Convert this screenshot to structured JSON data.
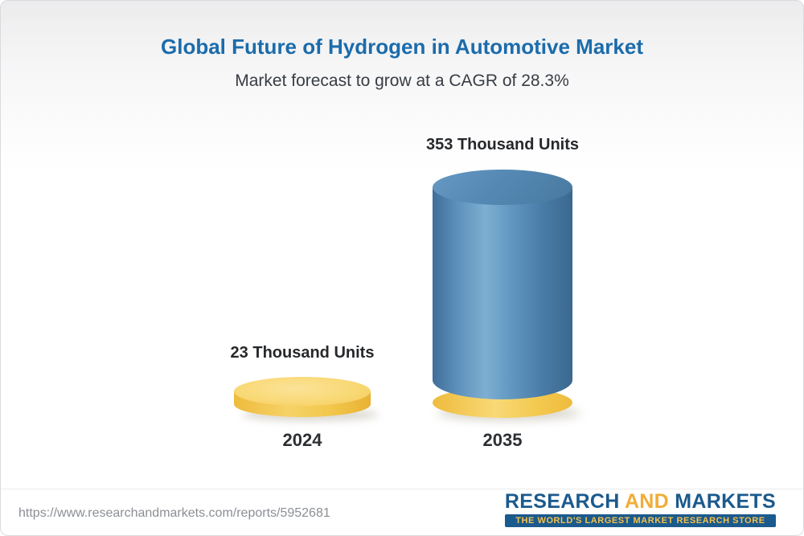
{
  "header": {
    "title": "Global Future of Hydrogen in Automotive Market",
    "subtitle": "Market forecast to grow at a CAGR of 28.3%"
  },
  "chart_data": {
    "type": "bar",
    "categories": [
      "2024",
      "2035"
    ],
    "values": [
      23,
      353
    ],
    "value_labels": [
      "23 Thousand Units",
      "353 Thousand Units"
    ],
    "unit": "Thousand Units",
    "title": "Global Future of Hydrogen in Automotive Market",
    "subtitle": "Market forecast to grow at a CAGR of 28.3%",
    "cagr": "28.3%",
    "xlabel": "",
    "ylabel": "",
    "ylim": [
      0,
      400
    ],
    "grid": false,
    "legend": "none",
    "bar_style": "3d-cylinder",
    "colors": {
      "bar_2024": "#f5cd5e",
      "bar_2035": "#5589b4",
      "base_ring": "#f3c94f",
      "title": "#1b6cab"
    }
  },
  "footer": {
    "url": "https://www.researchandmarkets.com/reports/5952681",
    "logo": {
      "research": "RESEARCH",
      "and": "AND",
      "markets": "MARKETS",
      "tagline": "THE WORLD'S LARGEST MARKET RESEARCH STORE"
    }
  }
}
